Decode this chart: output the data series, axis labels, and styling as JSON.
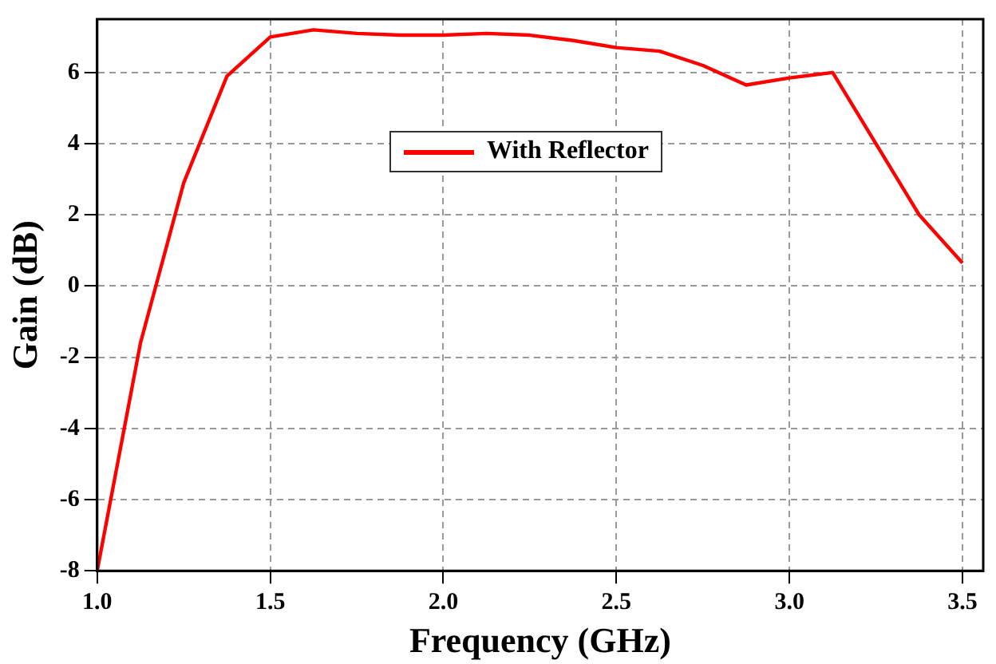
{
  "chart_data": {
    "type": "line",
    "xlabel": "Frequency (GHz)",
    "ylabel": "Gain (dB)",
    "x": [
      1.0,
      1.125,
      1.25,
      1.375,
      1.5,
      1.625,
      1.75,
      1.875,
      2.0,
      2.125,
      2.25,
      2.375,
      2.5,
      2.625,
      2.75,
      2.875,
      3.0,
      3.125,
      3.25,
      3.375,
      3.5
    ],
    "series": [
      {
        "name": "With Reflector",
        "color": "#ff0000",
        "values": [
          -8,
          -1.6,
          2.9,
          5.9,
          7.0,
          7.2,
          7.1,
          7.05,
          7.05,
          7.1,
          7.05,
          6.9,
          6.7,
          6.6,
          6.2,
          5.65,
          5.85,
          6.0,
          4.0,
          2.0,
          0.65
        ]
      }
    ],
    "xlim": [
      1.0,
      3.56
    ],
    "xticks": [
      {
        "value": 1,
        "label": "1.0"
      },
      1.5,
      {
        "value": 2,
        "label": "2.0"
      },
      2.5,
      {
        "value": 3,
        "label": "3.0"
      },
      3.5
    ],
    "ylim": [
      -8,
      7.5
    ],
    "yticks": [
      -8,
      -6,
      -4,
      -2,
      0,
      2,
      4,
      6
    ],
    "grid": true,
    "legend": "top",
    "marker": "none",
    "line_style": "solid"
  }
}
